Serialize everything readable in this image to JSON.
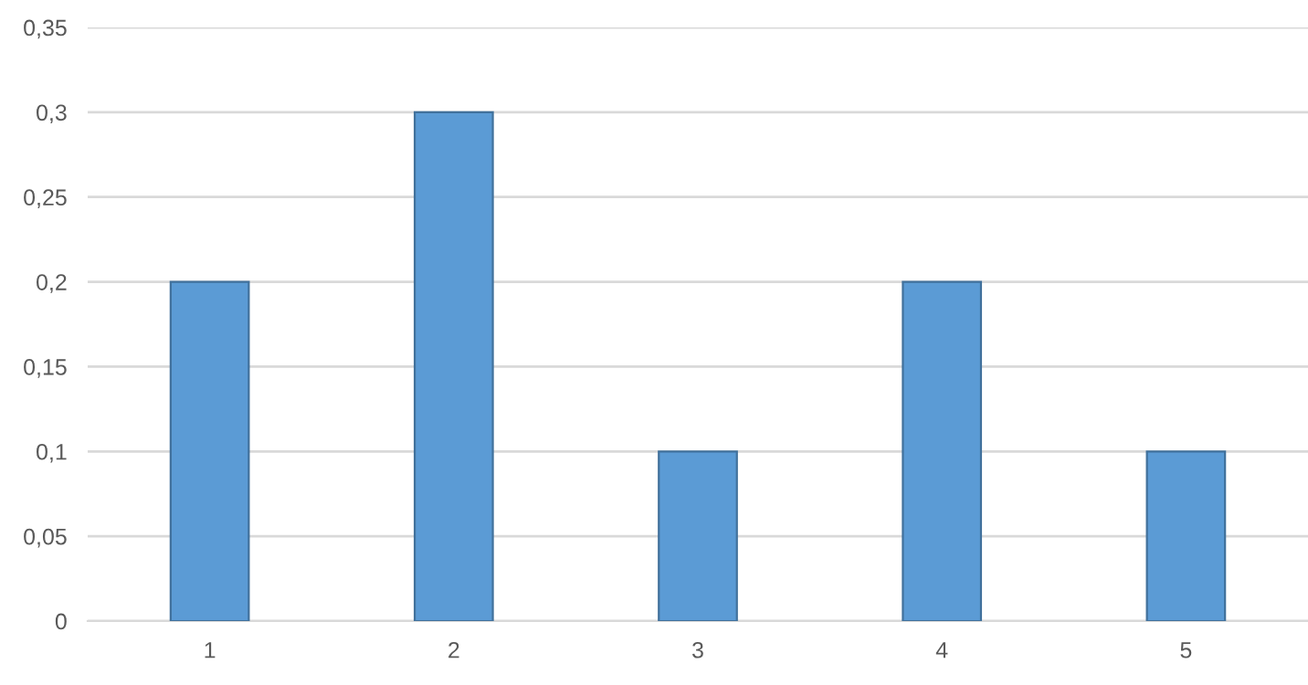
{
  "chart_data": {
    "type": "bar",
    "categories": [
      "1",
      "2",
      "3",
      "4",
      "5"
    ],
    "values": [
      0.2,
      0.3,
      0.1,
      0.2,
      0.1
    ],
    "color": "#5b9bd5",
    "ylim": [
      0,
      0.35
    ],
    "yticks": [
      {
        "value": 0,
        "label": "0"
      },
      {
        "value": 0.05,
        "label": "0,05"
      },
      {
        "value": 0.1,
        "label": "0,1"
      },
      {
        "value": 0.15,
        "label": "0,15"
      },
      {
        "value": 0.2,
        "label": "0,2"
      },
      {
        "value": 0.25,
        "label": "0,25"
      },
      {
        "value": 0.3,
        "label": "0,3"
      },
      {
        "value": 0.35,
        "label": "0,35"
      }
    ],
    "grid": "y",
    "legend": false
  }
}
